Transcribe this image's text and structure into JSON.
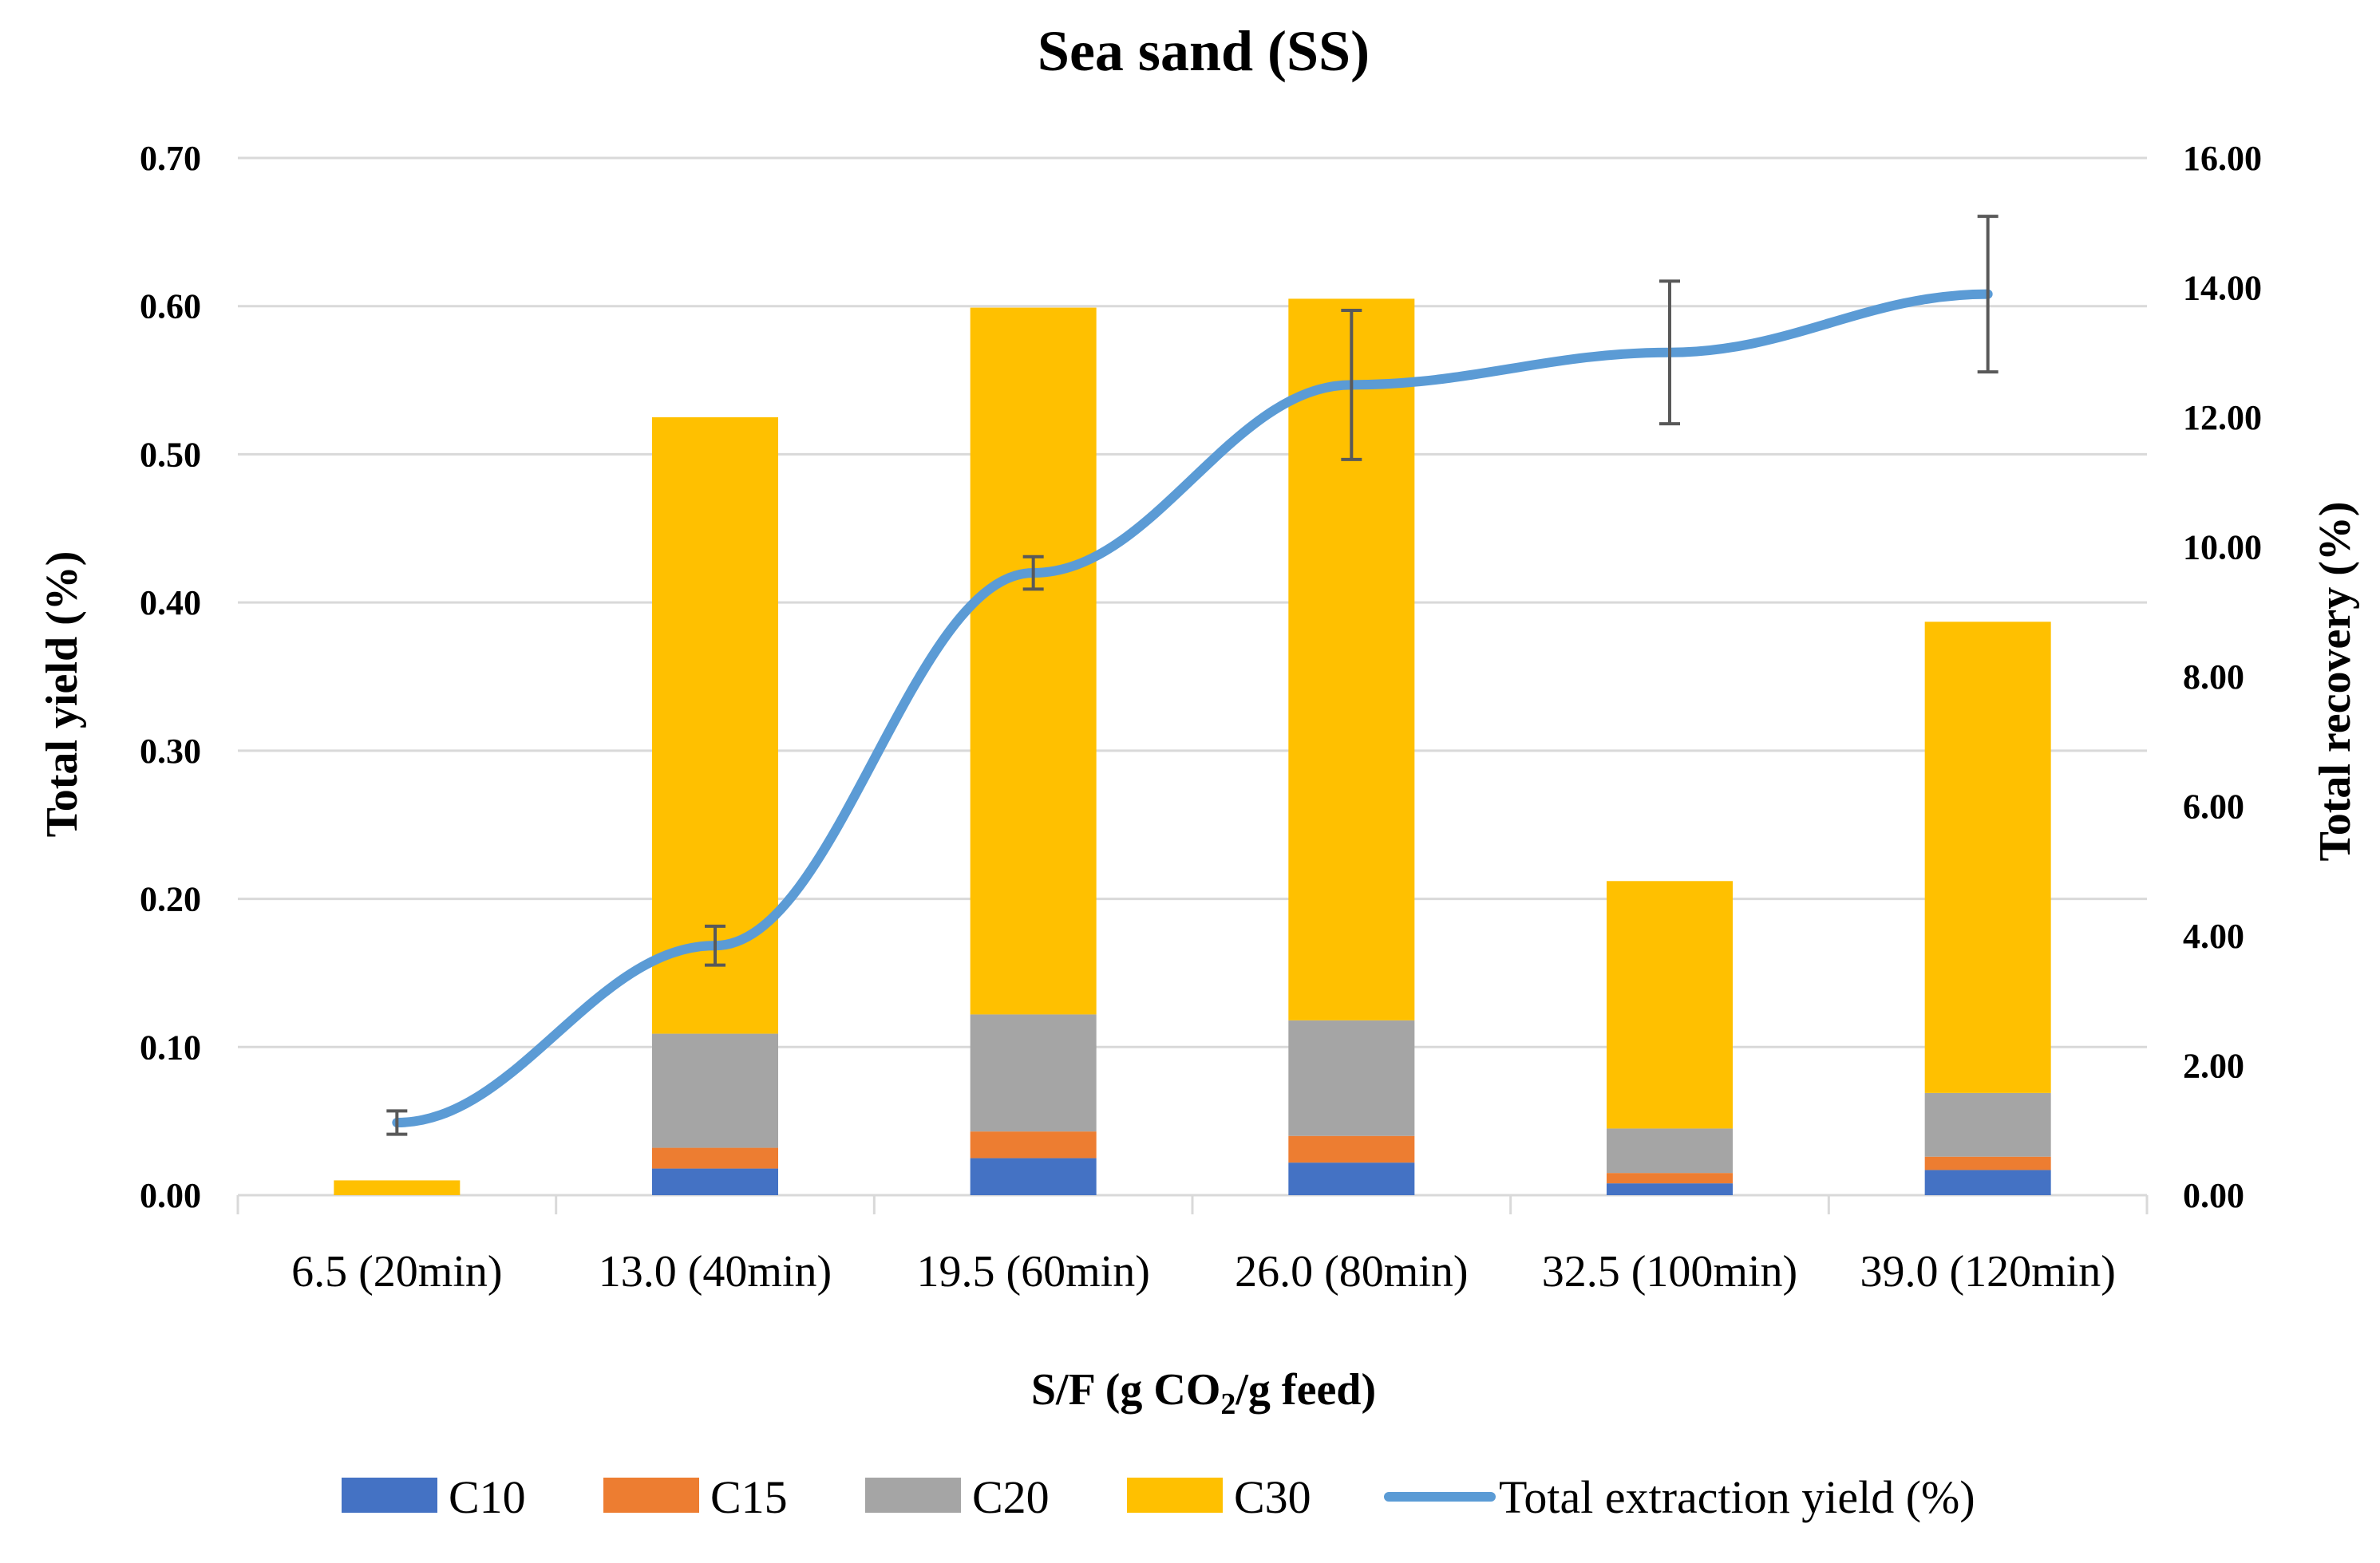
{
  "chart_data": {
    "type": "bar",
    "stacked": true,
    "title": "Sea sand (SS)",
    "xlabel": {
      "main": "S/F (g CO",
      "sub": "2",
      "rest": "/g feed)"
    },
    "ylabel": "Total  yield (%)",
    "y2label": "Total recovery (%)",
    "categories": [
      "6.5 (20min)",
      "13.0 (40min)",
      "19.5 (60min)",
      "26.0 (80min)",
      "32.5 (100min)",
      "39.0 (120min)"
    ],
    "ylim": [
      0,
      0.7
    ],
    "yticks": [
      "0.00",
      "0.10",
      "0.20",
      "0.30",
      "0.40",
      "0.50",
      "0.60",
      "0.70"
    ],
    "y2lim": [
      0,
      16
    ],
    "y2ticks": [
      "0.00",
      "2.00",
      "4.00",
      "6.00",
      "8.00",
      "10.00",
      "12.00",
      "14.00",
      "16.00"
    ],
    "series": [
      {
        "name": "C10",
        "color": "#4472c4",
        "values": [
          0.0,
          0.018,
          0.025,
          0.022,
          0.008,
          0.017
        ]
      },
      {
        "name": "C15",
        "color": "#ed7d31",
        "values": [
          0.0,
          0.014,
          0.018,
          0.018,
          0.007,
          0.009
        ]
      },
      {
        "name": "C20",
        "color": "#a5a5a5",
        "values": [
          0.0,
          0.077,
          0.079,
          0.078,
          0.03,
          0.043
        ]
      },
      {
        "name": "C30",
        "color": "#ffc000",
        "values": [
          0.01,
          0.416,
          0.477,
          0.487,
          0.167,
          0.318
        ]
      }
    ],
    "line": {
      "name": "Total extraction  yield (%)",
      "color": "#5b9bd5",
      "axis": "right",
      "values": [
        1.12,
        3.85,
        9.6,
        12.5,
        13.0,
        13.9
      ],
      "error": [
        0.18,
        0.3,
        0.25,
        1.15,
        1.1,
        1.2
      ]
    },
    "legend_position": "bottom"
  }
}
